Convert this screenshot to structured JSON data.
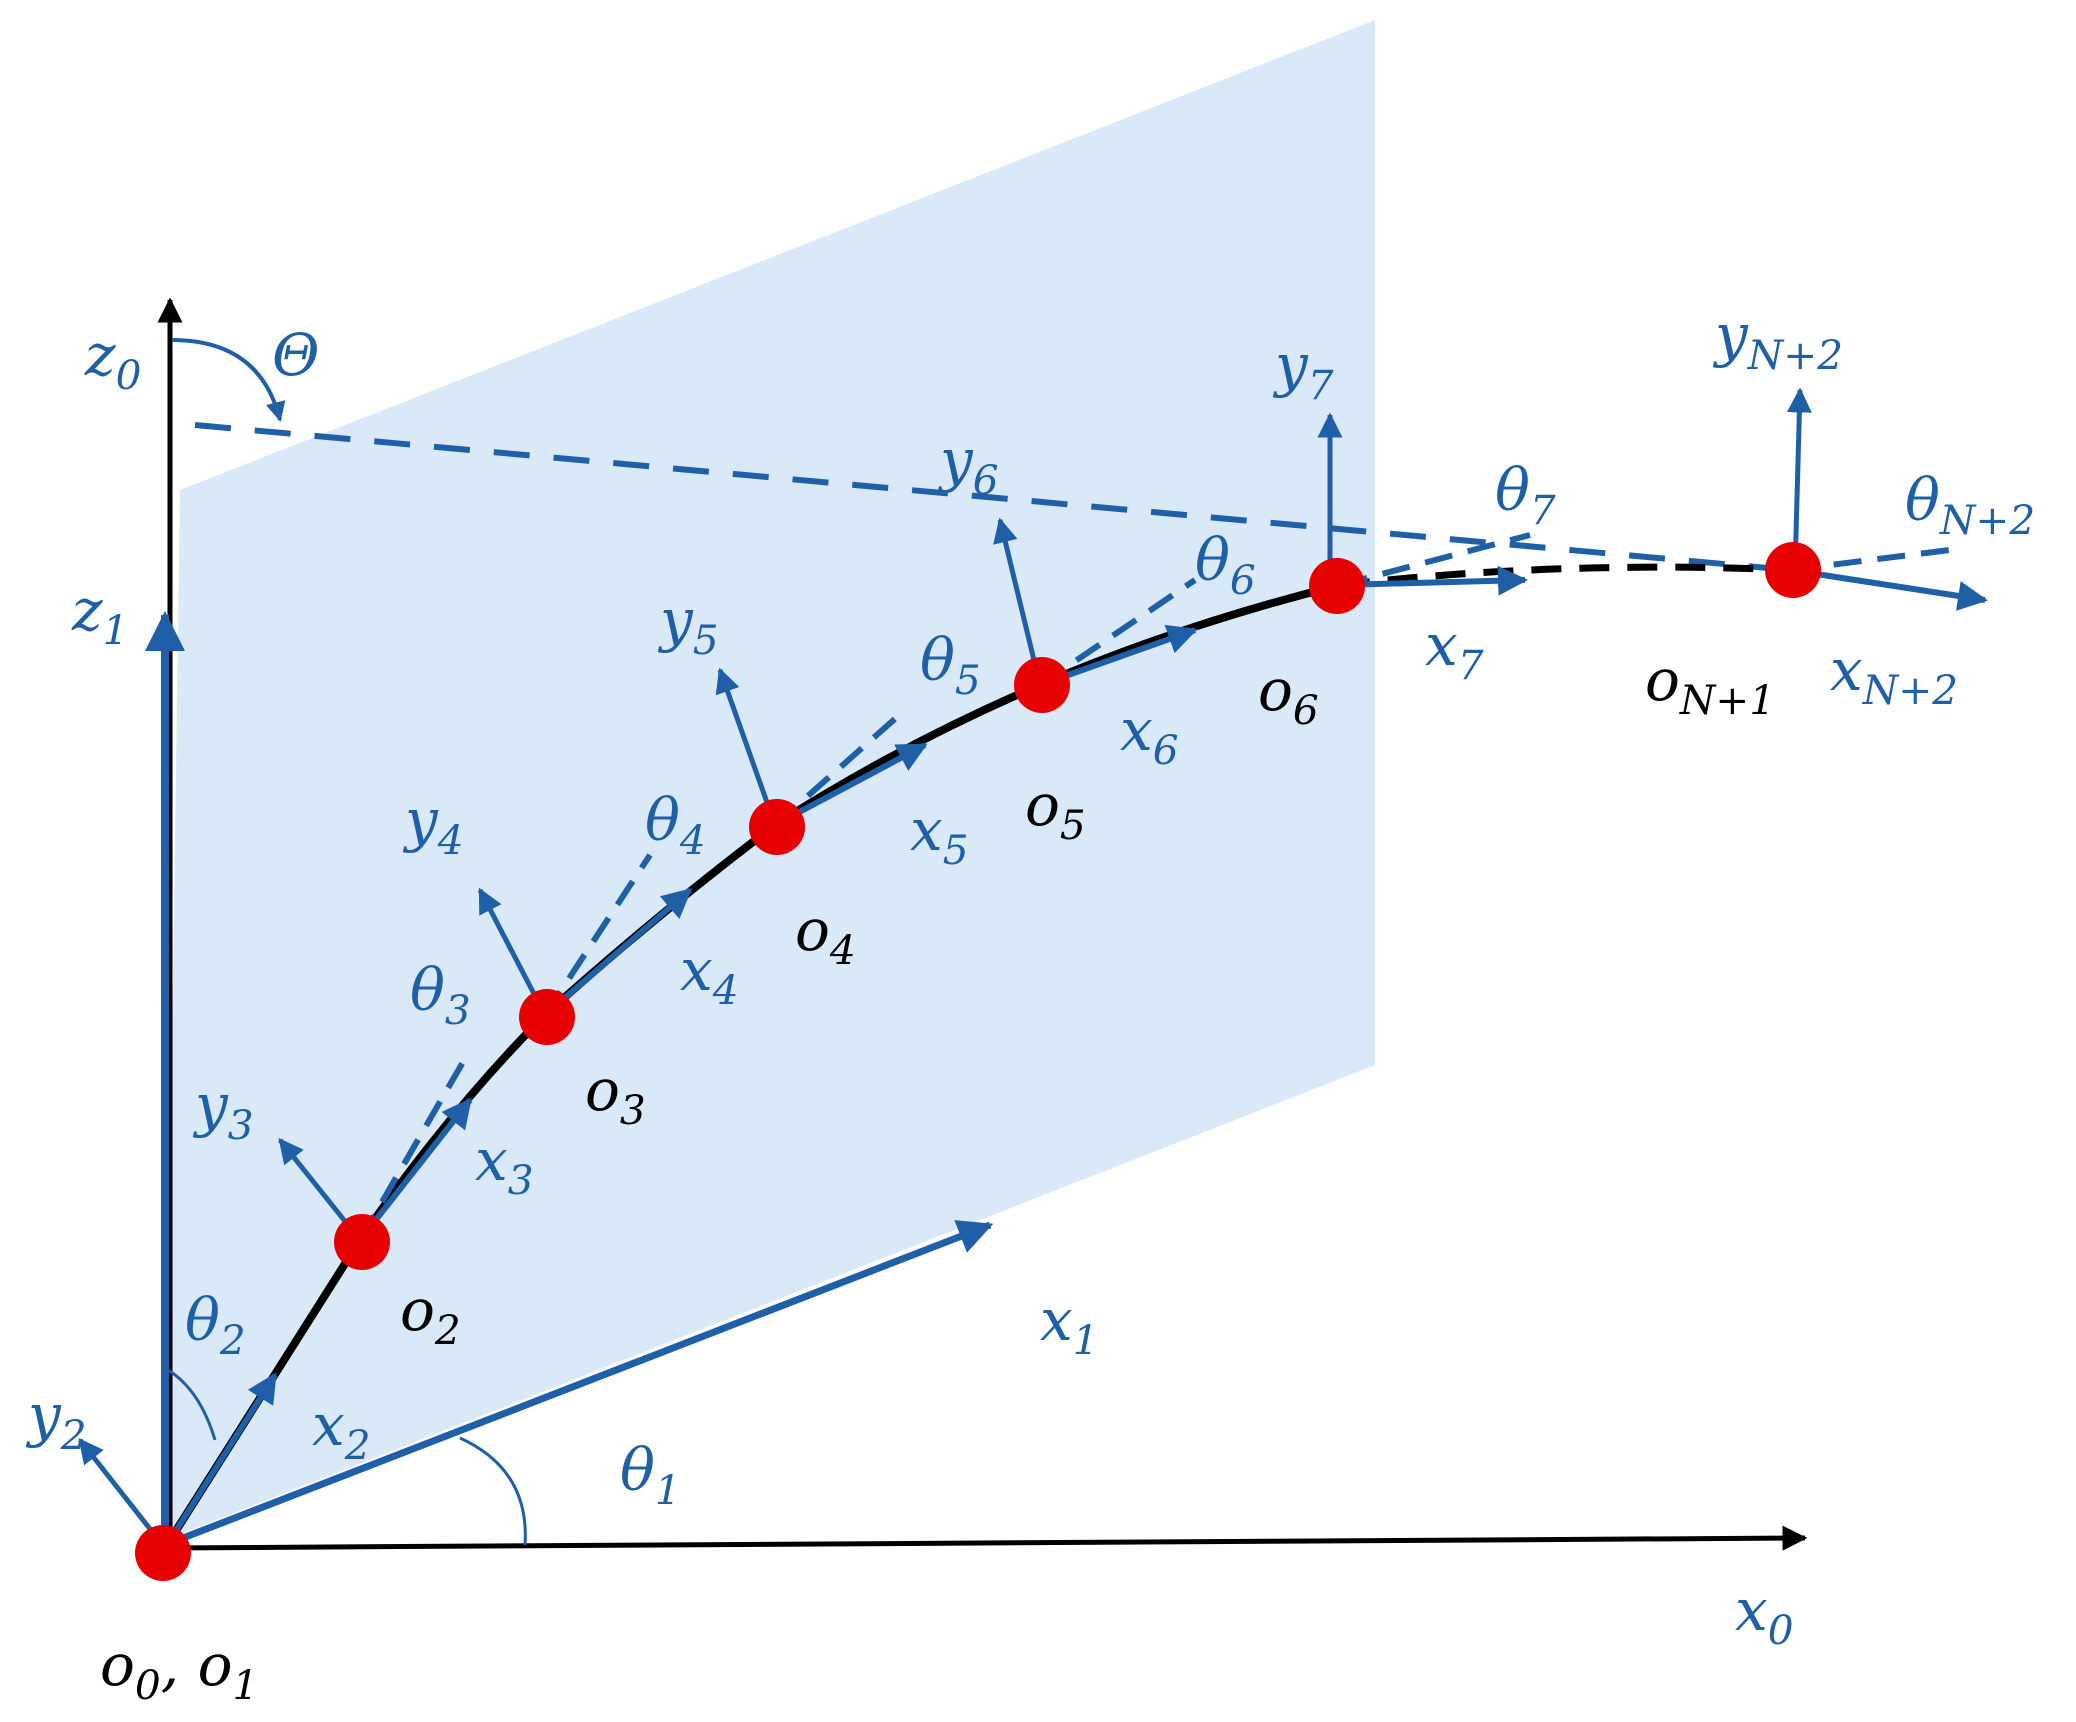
{
  "colors": {
    "plane": "#d9e9f7",
    "axis_blue": "#1f5fa8",
    "curve": "#000000",
    "node": "#e60000",
    "base_axis": "#000000"
  },
  "labels": {
    "z0": {
      "base": "z",
      "sub": "0"
    },
    "z1": {
      "base": "z",
      "sub": "1"
    },
    "Theta": {
      "base": "Θ",
      "sub": ""
    },
    "x0": {
      "base": "x",
      "sub": "0"
    },
    "x1": {
      "base": "x",
      "sub": "1"
    },
    "x2": {
      "base": "x",
      "sub": "2"
    },
    "x3": {
      "base": "x",
      "sub": "3"
    },
    "x4": {
      "base": "x",
      "sub": "4"
    },
    "x5": {
      "base": "x",
      "sub": "5"
    },
    "x6": {
      "base": "x",
      "sub": "6"
    },
    "x7": {
      "base": "x",
      "sub": "7"
    },
    "xN2": {
      "base": "x",
      "sub": "N+2"
    },
    "y2": {
      "base": "y",
      "sub": "2"
    },
    "y3": {
      "base": "y",
      "sub": "3"
    },
    "y4": {
      "base": "y",
      "sub": "4"
    },
    "y5": {
      "base": "y",
      "sub": "5"
    },
    "y6": {
      "base": "y",
      "sub": "6"
    },
    "y7": {
      "base": "y",
      "sub": "7"
    },
    "yN2": {
      "base": "y",
      "sub": "N+2"
    },
    "th1": {
      "base": "θ",
      "sub": "1"
    },
    "th2": {
      "base": "θ",
      "sub": "2"
    },
    "th3": {
      "base": "θ",
      "sub": "3"
    },
    "th4": {
      "base": "θ",
      "sub": "4"
    },
    "th5": {
      "base": "θ",
      "sub": "5"
    },
    "th6": {
      "base": "θ",
      "sub": "6"
    },
    "th7": {
      "base": "θ",
      "sub": "7"
    },
    "thN2": {
      "base": "θ",
      "sub": "N+2"
    },
    "o01": {
      "base": "o",
      "sub": "0",
      "mid": ", ",
      "base2": "o",
      "sub2": "1"
    },
    "o2": {
      "base": "o",
      "sub": "2"
    },
    "o3": {
      "base": "o",
      "sub": "3"
    },
    "o4": {
      "base": "o",
      "sub": "4"
    },
    "o5": {
      "base": "o",
      "sub": "5"
    },
    "o6": {
      "base": "o",
      "sub": "6"
    },
    "oN1": {
      "base": "o",
      "sub": "N+1"
    }
  }
}
